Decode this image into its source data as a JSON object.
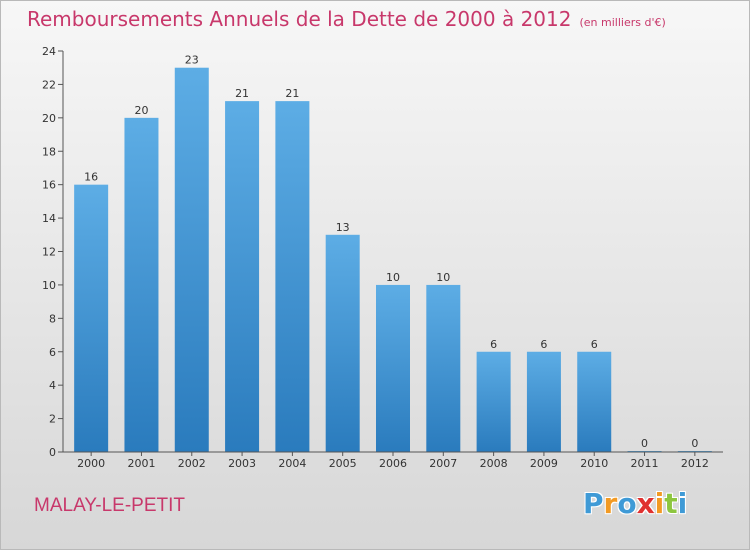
{
  "title": "Remboursements Annuels de la Dette de 2000 à 2012",
  "subtitle": "(en milliers d'€)",
  "place": "MALAY-LE-PETIT",
  "brand": {
    "letters": [
      "P",
      "r",
      "o",
      "x",
      "i",
      "t",
      "i"
    ],
    "colors": [
      "#3f9ad6",
      "#f29a23",
      "#3f9ad6",
      "#e0312f",
      "#f29a23",
      "#8dc63f",
      "#3f9ad6"
    ]
  },
  "colors": {
    "bar_top": "#5dade5",
    "bar_bottom": "#2a7bbd",
    "axis": "#555555",
    "text": "#333333",
    "accent": "#c8386b"
  },
  "chart_data": {
    "type": "bar",
    "categories": [
      "2000",
      "2001",
      "2002",
      "2003",
      "2004",
      "2005",
      "2006",
      "2007",
      "2008",
      "2009",
      "2010",
      "2011",
      "2012"
    ],
    "values": [
      16,
      20,
      23,
      21,
      21,
      13,
      10,
      10,
      6,
      6,
      6,
      0,
      0
    ],
    "data_labels": [
      "16",
      "20",
      "23",
      "21",
      "21",
      "13",
      "10",
      "10",
      "6",
      "6",
      "6",
      "0",
      "0"
    ],
    "yticks": [
      0,
      2,
      4,
      6,
      8,
      10,
      12,
      14,
      16,
      18,
      20,
      22,
      24
    ],
    "ylim": [
      0,
      24
    ],
    "grid": false,
    "legend": "none"
  }
}
